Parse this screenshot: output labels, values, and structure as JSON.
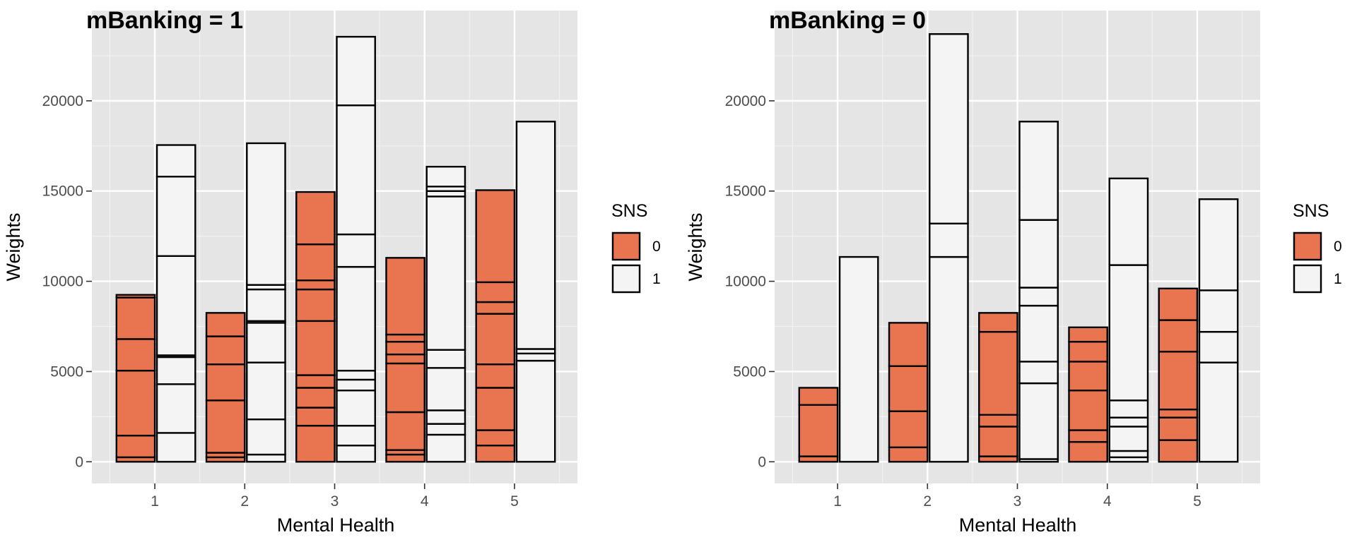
{
  "chart_data": [
    {
      "type": "bar",
      "title": "mBanking = 1",
      "xlabel": "Mental Health",
      "ylabel": "Weights",
      "categories": [
        "1",
        "2",
        "3",
        "4",
        "5"
      ],
      "yticks": [
        0,
        5000,
        10000,
        15000,
        20000
      ],
      "ylim": [
        -1200,
        25000
      ],
      "grid": true,
      "legend": {
        "title": "SNS",
        "entries": [
          "0",
          "1"
        ],
        "placement": "right"
      },
      "series": [
        {
          "name": "0",
          "color": "#E8754F",
          "stacks": [
            [
              250,
              1200,
              3600,
              1750,
              2300,
              150
            ],
            [
              250,
              250,
              2900,
              2000,
              1550,
              1300
            ],
            [
              2000,
              1000,
              1100,
              700,
              3000,
              1750,
              500,
              2000,
              2900
            ],
            [
              400,
              250,
              2100,
              2700,
              500,
              700,
              400,
              4250
            ],
            [
              900,
              850,
              2350,
              1300,
              2800,
              650,
              1100,
              5100
            ]
          ]
        },
        {
          "name": "1",
          "color": "#F4F4F4",
          "stacks": [
            [
              1600,
              2700,
              1500,
              100,
              5500,
              4400,
              1750
            ],
            [
              400,
              1950,
              3150,
              2200,
              100,
              1750,
              250,
              7850
            ],
            [
              900,
              1100,
              1950,
              600,
              500,
              5750,
              1800,
              7150,
              3800
            ],
            [
              1500,
              600,
              750,
              2350,
              1000,
              8500,
              300,
              250,
              1100
            ],
            [
              5600,
              400,
              250,
              12600
            ]
          ]
        }
      ]
    },
    {
      "type": "bar",
      "title": "mBanking = 0",
      "xlabel": "Mental Health",
      "ylabel": "Weights",
      "categories": [
        "1",
        "2",
        "3",
        "4",
        "5"
      ],
      "yticks": [
        0,
        5000,
        10000,
        15000,
        20000
      ],
      "ylim": [
        -1200,
        25000
      ],
      "grid": true,
      "legend": {
        "title": "SNS",
        "entries": [
          "0",
          "1"
        ],
        "placement": "right"
      },
      "series": [
        {
          "name": "0",
          "color": "#E8754F",
          "stacks": [
            [
              300,
              2850,
              950
            ],
            [
              800,
              2000,
              2500,
              2400
            ],
            [
              300,
              1650,
              650,
              4600,
              1050
            ],
            [
              1100,
              650,
              2200,
              1600,
              1100,
              800
            ],
            [
              1200,
              1250,
              450,
              3200,
              1750,
              1750
            ]
          ]
        },
        {
          "name": "1",
          "color": "#F4F4F4",
          "stacks": [
            [
              11350
            ],
            [
              11350,
              1850,
              10500
            ],
            [
              150,
              4200,
              1200,
              3100,
              1000,
              3750,
              5450
            ],
            [
              250,
              350,
              1350,
              500,
              950,
              7500,
              4800
            ],
            [
              5500,
              1700,
              2300,
              5050
            ]
          ]
        }
      ]
    }
  ]
}
